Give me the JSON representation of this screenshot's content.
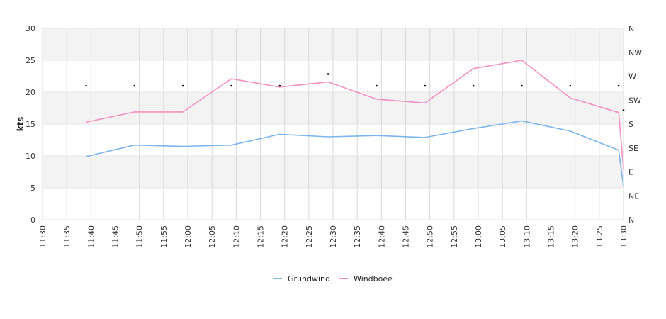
{
  "chart_data": {
    "type": "line",
    "title": "",
    "xlabel": "",
    "ylabel": "kts",
    "ylim": [
      0,
      30
    ],
    "yticks": [
      0,
      5,
      10,
      15,
      20,
      25,
      30
    ],
    "xticks": [
      "11:30",
      "11:35",
      "11:40",
      "11:45",
      "11:50",
      "11:55",
      "12:00",
      "12:05",
      "12:10",
      "12:15",
      "12:20",
      "12:25",
      "12:30",
      "12:35",
      "12:40",
      "12:45",
      "12:50",
      "12:55",
      "13:00",
      "13:05",
      "13:10",
      "13:15",
      "13:20",
      "13:25",
      "13:30"
    ],
    "right_axis": {
      "labels": [
        "N",
        "NE",
        "E",
        "SE",
        "S",
        "SW",
        "W",
        "NW",
        "N"
      ],
      "range_deg": [
        0,
        360
      ]
    },
    "grid": true,
    "legend_position": "bottom-center",
    "series": [
      {
        "name": "Grundwind",
        "color": "#7cb5ec",
        "x": [
          "11:39",
          "11:49",
          "11:59",
          "12:09",
          "12:19",
          "12:29",
          "12:39",
          "12:49",
          "12:59",
          "13:09",
          "13:19",
          "13:29",
          "13:30"
        ],
        "values": [
          9.9,
          11.7,
          11.5,
          11.7,
          13.4,
          13.0,
          13.2,
          12.9,
          14.3,
          15.5,
          13.9,
          10.9,
          5.2
        ]
      },
      {
        "name": "Windboee",
        "color": "#f191c1",
        "x": [
          "11:39",
          "11:49",
          "11:59",
          "12:09",
          "12:19",
          "12:29",
          "12:39",
          "12:49",
          "12:59",
          "13:09",
          "13:19",
          "13:29",
          "13:30"
        ],
        "values": [
          15.3,
          16.9,
          16.9,
          22.1,
          20.8,
          21.6,
          18.9,
          18.3,
          23.7,
          25.0,
          19.1,
          16.8,
          8.0
        ]
      },
      {
        "name": "",
        "type": "scatter",
        "axis": "right",
        "x": [
          "11:39",
          "11:49",
          "11:59",
          "12:09",
          "12:19",
          "12:29",
          "12:39",
          "12:49",
          "12:59",
          "13:09",
          "13:19",
          "13:29",
          "13:30"
        ],
        "values_deg": [
          252,
          252,
          252,
          252,
          252,
          274,
          252,
          252,
          252,
          252,
          252,
          252,
          206
        ]
      }
    ]
  }
}
